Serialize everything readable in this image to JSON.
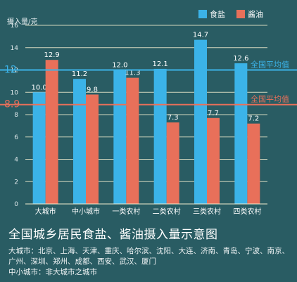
{
  "chart_data": {
    "type": "bar",
    "title": "全国城乡居民食盐、酱油摄入量示意图",
    "ylabel": "摄入量/克",
    "ylim": [
      0,
      16
    ],
    "yticks": [
      0,
      2,
      4,
      6,
      8,
      10,
      12,
      14,
      16
    ],
    "grid": true,
    "legend": "top-right",
    "categories": [
      "大城市",
      "中小城市",
      "一类农村",
      "二类农村",
      "三类农村",
      "四类农村"
    ],
    "series": [
      {
        "name": "食盐",
        "color": "#3bb3e8",
        "values": [
          10.0,
          11.2,
          12.0,
          12.1,
          14.7,
          12.6
        ],
        "labels": [
          "10.0",
          "11.2",
          "12.0",
          "12.1",
          "14.7",
          "12.6"
        ]
      },
      {
        "name": "酱油",
        "color": "#e8705a",
        "values": [
          12.9,
          9.8,
          11.3,
          7.3,
          7.7,
          7.2
        ],
        "labels": [
          "12.9",
          "9.8",
          "11.3",
          "7.3",
          "7.7",
          "7.2"
        ]
      }
    ],
    "reference_lines": [
      {
        "value": 12,
        "value_label": "12",
        "text": "全国平均值",
        "color": "#3bb3e8"
      },
      {
        "value": 8.9,
        "value_label": "8.9",
        "text": "全国平均值",
        "color": "#e8705a"
      }
    ]
  },
  "notes": [
    "大城市：北京、上海、天津、重庆、哈尔滨、沈阳、大连、济南、青岛、宁波、南京、广州、深圳、郑州、成都、西安、武汉、厦门",
    "中小城市：非大城市之城市"
  ]
}
